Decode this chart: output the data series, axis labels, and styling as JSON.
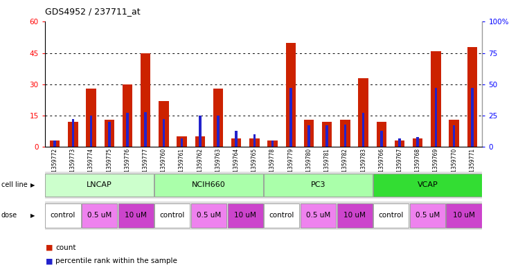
{
  "title": "GDS4952 / 237711_at",
  "samples": [
    "GSM1359772",
    "GSM1359773",
    "GSM1359774",
    "GSM1359775",
    "GSM1359776",
    "GSM1359777",
    "GSM1359760",
    "GSM1359761",
    "GSM1359762",
    "GSM1359763",
    "GSM1359764",
    "GSM1359765",
    "GSM1359778",
    "GSM1359779",
    "GSM1359780",
    "GSM1359781",
    "GSM1359782",
    "GSM1359783",
    "GSM1359766",
    "GSM1359767",
    "GSM1359768",
    "GSM1359769",
    "GSM1359770",
    "GSM1359771"
  ],
  "counts": [
    3,
    12,
    28,
    13,
    30,
    45,
    22,
    5,
    5,
    28,
    4,
    4,
    3,
    50,
    13,
    12,
    13,
    33,
    12,
    3,
    4,
    46,
    13,
    48
  ],
  "percentile_ranks": [
    5,
    22,
    25,
    20,
    27,
    28,
    22,
    7,
    25,
    25,
    13,
    10,
    5,
    47,
    17,
    17,
    18,
    27,
    13,
    7,
    8,
    47,
    17,
    47
  ],
  "cell_lines": [
    {
      "name": "LNCAP",
      "start": 0,
      "end": 5,
      "color": "#CCFFCC"
    },
    {
      "name": "NCIH660",
      "start": 6,
      "end": 11,
      "color": "#AAFFAA"
    },
    {
      "name": "PC3",
      "start": 12,
      "end": 17,
      "color": "#AAFFAA"
    },
    {
      "name": "VCAP",
      "start": 18,
      "end": 23,
      "color": "#33DD33"
    }
  ],
  "dose_segments": [
    {
      "label": "control",
      "start": 0,
      "end": 1,
      "color": "#FFFFFF"
    },
    {
      "label": "0.5 uM",
      "start": 2,
      "end": 3,
      "color": "#EE82EE"
    },
    {
      "label": "10 uM",
      "start": 4,
      "end": 5,
      "color": "#CC44CC"
    },
    {
      "label": "control",
      "start": 6,
      "end": 7,
      "color": "#FFFFFF"
    },
    {
      "label": "0.5 uM",
      "start": 8,
      "end": 9,
      "color": "#EE82EE"
    },
    {
      "label": "10 uM",
      "start": 10,
      "end": 11,
      "color": "#CC44CC"
    },
    {
      "label": "control",
      "start": 12,
      "end": 13,
      "color": "#FFFFFF"
    },
    {
      "label": "0.5 uM",
      "start": 14,
      "end": 15,
      "color": "#EE82EE"
    },
    {
      "label": "10 uM",
      "start": 16,
      "end": 17,
      "color": "#CC44CC"
    },
    {
      "label": "control",
      "start": 18,
      "end": 19,
      "color": "#FFFFFF"
    },
    {
      "label": "0.5 uM",
      "start": 20,
      "end": 21,
      "color": "#EE82EE"
    },
    {
      "label": "10 uM",
      "start": 22,
      "end": 23,
      "color": "#CC44CC"
    }
  ],
  "ylim_left": [
    0,
    60
  ],
  "ylim_right": [
    0,
    100
  ],
  "yticks_left": [
    0,
    15,
    30,
    45,
    60
  ],
  "yticks_right": [
    0,
    25,
    50,
    75,
    100
  ],
  "bar_color": "#CC2200",
  "percentile_color": "#2222CC",
  "plot_bg": "#FFFFFF",
  "axes_bg": "#DDDDDD"
}
